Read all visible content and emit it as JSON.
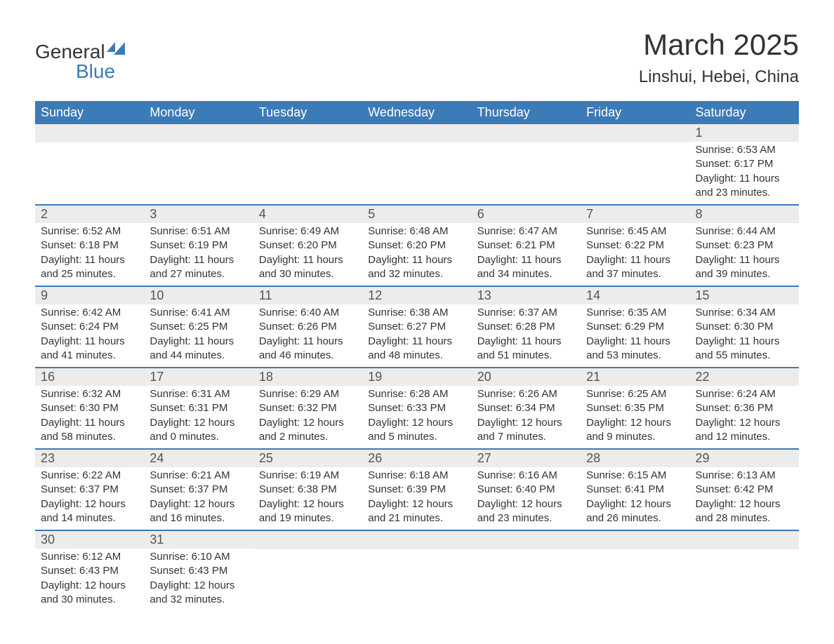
{
  "logo": {
    "line1": "General",
    "line2": "Blue"
  },
  "title": "March 2025",
  "location": "Linshui, Hebei, China",
  "colors": {
    "header_bg": "#3b7bb8",
    "header_text": "#ffffff",
    "daynum_bg": "#ececec",
    "border": "#3b7bb8",
    "text": "#333333"
  },
  "day_labels": [
    "Sunday",
    "Monday",
    "Tuesday",
    "Wednesday",
    "Thursday",
    "Friday",
    "Saturday"
  ],
  "weeks": [
    [
      null,
      null,
      null,
      null,
      null,
      null,
      {
        "n": "1",
        "sr": "6:53 AM",
        "ss": "6:17 PM",
        "dl": "11 hours and 23 minutes."
      }
    ],
    [
      {
        "n": "2",
        "sr": "6:52 AM",
        "ss": "6:18 PM",
        "dl": "11 hours and 25 minutes."
      },
      {
        "n": "3",
        "sr": "6:51 AM",
        "ss": "6:19 PM",
        "dl": "11 hours and 27 minutes."
      },
      {
        "n": "4",
        "sr": "6:49 AM",
        "ss": "6:20 PM",
        "dl": "11 hours and 30 minutes."
      },
      {
        "n": "5",
        "sr": "6:48 AM",
        "ss": "6:20 PM",
        "dl": "11 hours and 32 minutes."
      },
      {
        "n": "6",
        "sr": "6:47 AM",
        "ss": "6:21 PM",
        "dl": "11 hours and 34 minutes."
      },
      {
        "n": "7",
        "sr": "6:45 AM",
        "ss": "6:22 PM",
        "dl": "11 hours and 37 minutes."
      },
      {
        "n": "8",
        "sr": "6:44 AM",
        "ss": "6:23 PM",
        "dl": "11 hours and 39 minutes."
      }
    ],
    [
      {
        "n": "9",
        "sr": "6:42 AM",
        "ss": "6:24 PM",
        "dl": "11 hours and 41 minutes."
      },
      {
        "n": "10",
        "sr": "6:41 AM",
        "ss": "6:25 PM",
        "dl": "11 hours and 44 minutes."
      },
      {
        "n": "11",
        "sr": "6:40 AM",
        "ss": "6:26 PM",
        "dl": "11 hours and 46 minutes."
      },
      {
        "n": "12",
        "sr": "6:38 AM",
        "ss": "6:27 PM",
        "dl": "11 hours and 48 minutes."
      },
      {
        "n": "13",
        "sr": "6:37 AM",
        "ss": "6:28 PM",
        "dl": "11 hours and 51 minutes."
      },
      {
        "n": "14",
        "sr": "6:35 AM",
        "ss": "6:29 PM",
        "dl": "11 hours and 53 minutes."
      },
      {
        "n": "15",
        "sr": "6:34 AM",
        "ss": "6:30 PM",
        "dl": "11 hours and 55 minutes."
      }
    ],
    [
      {
        "n": "16",
        "sr": "6:32 AM",
        "ss": "6:30 PM",
        "dl": "11 hours and 58 minutes."
      },
      {
        "n": "17",
        "sr": "6:31 AM",
        "ss": "6:31 PM",
        "dl": "12 hours and 0 minutes."
      },
      {
        "n": "18",
        "sr": "6:29 AM",
        "ss": "6:32 PM",
        "dl": "12 hours and 2 minutes."
      },
      {
        "n": "19",
        "sr": "6:28 AM",
        "ss": "6:33 PM",
        "dl": "12 hours and 5 minutes."
      },
      {
        "n": "20",
        "sr": "6:26 AM",
        "ss": "6:34 PM",
        "dl": "12 hours and 7 minutes."
      },
      {
        "n": "21",
        "sr": "6:25 AM",
        "ss": "6:35 PM",
        "dl": "12 hours and 9 minutes."
      },
      {
        "n": "22",
        "sr": "6:24 AM",
        "ss": "6:36 PM",
        "dl": "12 hours and 12 minutes."
      }
    ],
    [
      {
        "n": "23",
        "sr": "6:22 AM",
        "ss": "6:37 PM",
        "dl": "12 hours and 14 minutes."
      },
      {
        "n": "24",
        "sr": "6:21 AM",
        "ss": "6:37 PM",
        "dl": "12 hours and 16 minutes."
      },
      {
        "n": "25",
        "sr": "6:19 AM",
        "ss": "6:38 PM",
        "dl": "12 hours and 19 minutes."
      },
      {
        "n": "26",
        "sr": "6:18 AM",
        "ss": "6:39 PM",
        "dl": "12 hours and 21 minutes."
      },
      {
        "n": "27",
        "sr": "6:16 AM",
        "ss": "6:40 PM",
        "dl": "12 hours and 23 minutes."
      },
      {
        "n": "28",
        "sr": "6:15 AM",
        "ss": "6:41 PM",
        "dl": "12 hours and 26 minutes."
      },
      {
        "n": "29",
        "sr": "6:13 AM",
        "ss": "6:42 PM",
        "dl": "12 hours and 28 minutes."
      }
    ],
    [
      {
        "n": "30",
        "sr": "6:12 AM",
        "ss": "6:43 PM",
        "dl": "12 hours and 30 minutes."
      },
      {
        "n": "31",
        "sr": "6:10 AM",
        "ss": "6:43 PM",
        "dl": "12 hours and 32 minutes."
      },
      null,
      null,
      null,
      null,
      null
    ]
  ],
  "labels": {
    "sunrise": "Sunrise:",
    "sunset": "Sunset:",
    "daylight": "Daylight:"
  }
}
